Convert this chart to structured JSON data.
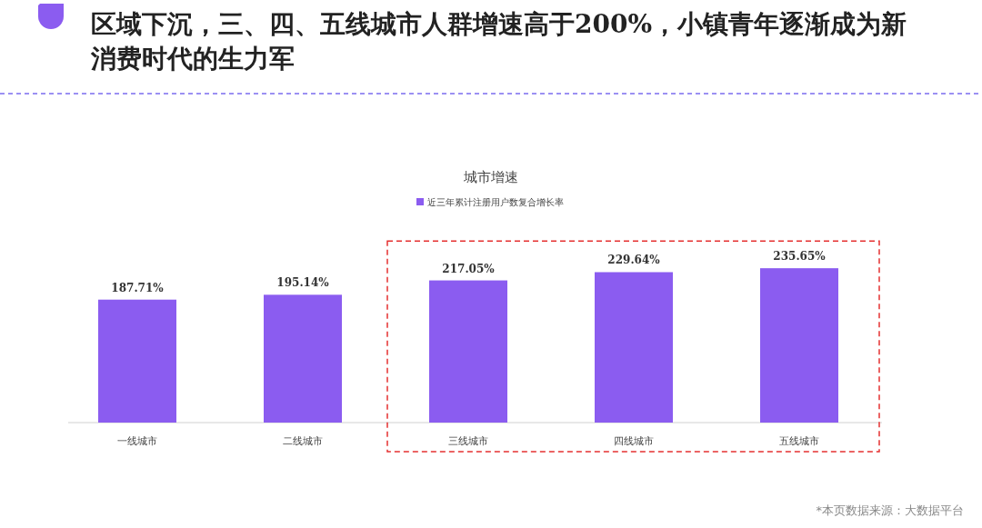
{
  "chart_data": {
    "type": "bar",
    "title": "区域下沉，三、四、五线城市人群增速高于200%，小镇青年逐渐成为新消费时代的生力军",
    "subtitle": "城市增速",
    "categories": [
      "一线城市",
      "二线城市",
      "三线城市",
      "四线城市",
      "五线城市"
    ],
    "series": [
      {
        "name": "近三年累计注册用户数复合增长率",
        "color": "#8b5cf0",
        "values": [
          187.71,
          195.14,
          217.05,
          229.64,
          235.65
        ],
        "value_labels": [
          "187.71%",
          "195.14%",
          "217.05%",
          "229.64%",
          "235.65%"
        ]
      }
    ],
    "legend": "top",
    "annotations": [
      "*本页数据来源：大数据平台"
    ]
  }
}
